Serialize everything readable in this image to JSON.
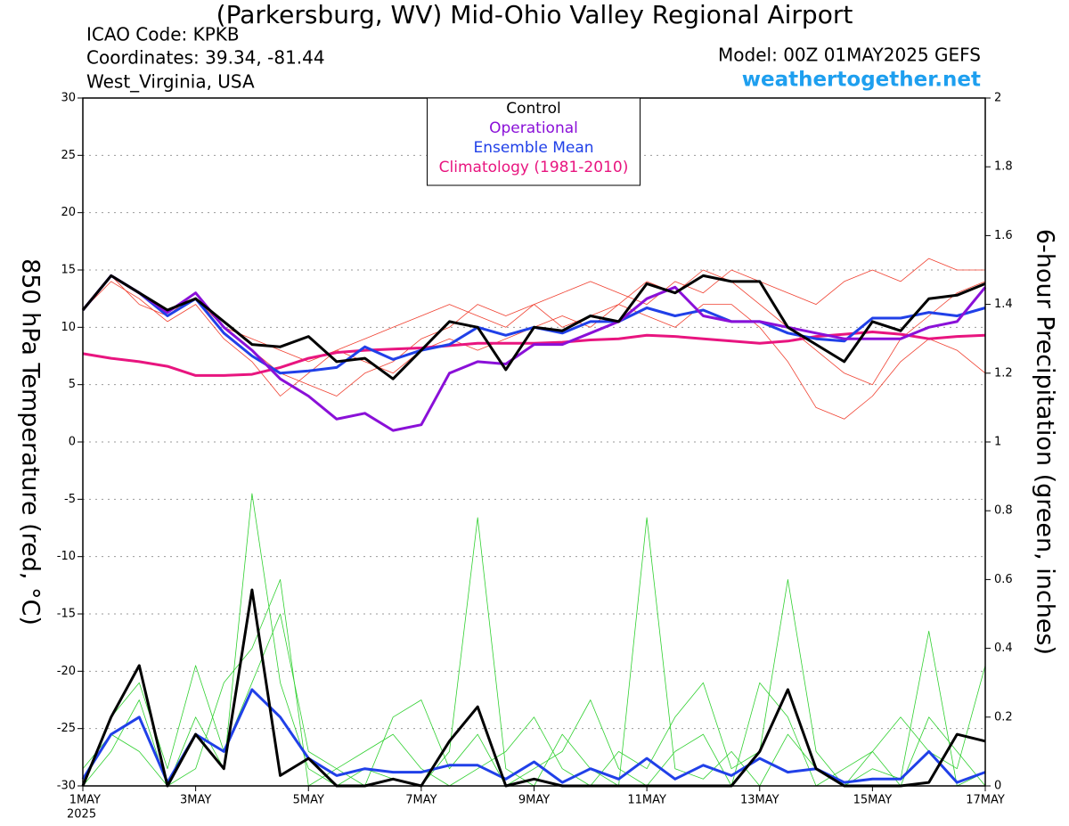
{
  "chart_data": {
    "type": "line",
    "title": "(Parkersburg, WV) Mid-Ohio Valley Regional Airport",
    "station_lines": [
      "ICAO Code: KPKB",
      "Coordinates: 39.34, -81.44",
      "West_Virginia, USA"
    ],
    "model": "Model: 00Z 01MAY2025 GEFS",
    "site": "weathertogether.net",
    "ylabel": "850 hPa Temperature (red, °C)",
    "y2label": "6-hour Precipitation (green, inches)",
    "year_label": "2025",
    "x": [
      1,
      1.5,
      2,
      2.5,
      3,
      3.5,
      4,
      4.5,
      5,
      5.5,
      6,
      6.5,
      7,
      7.5,
      8,
      8.5,
      9,
      9.5,
      10,
      10.5,
      11,
      11.5,
      12,
      12.5,
      13,
      13.5,
      14,
      14.5,
      15,
      15.5,
      16,
      16.5,
      17
    ],
    "xlim": [
      1,
      17
    ],
    "xticks": [
      {
        "value": 1,
        "label": "1MAY"
      },
      {
        "value": 3,
        "label": "3MAY"
      },
      {
        "value": 5,
        "label": "5MAY"
      },
      {
        "value": 7,
        "label": "7MAY"
      },
      {
        "value": 9,
        "label": "9MAY"
      },
      {
        "value": 11,
        "label": "11MAY"
      },
      {
        "value": 13,
        "label": "13MAY"
      },
      {
        "value": 15,
        "label": "15MAY"
      },
      {
        "value": 17,
        "label": "17MAY"
      }
    ],
    "ylim": [
      -30,
      30
    ],
    "yticks": [
      30,
      25,
      20,
      15,
      10,
      5,
      0,
      -5,
      -10,
      -15,
      -20,
      -25,
      -30
    ],
    "y2lim": [
      0,
      2
    ],
    "y2ticks": [
      2,
      1.8,
      1.6,
      1.4,
      1.2,
      1,
      0.8,
      0.6,
      0.4,
      0.2,
      0
    ],
    "grid": true,
    "legend": "top",
    "series": [
      {
        "name": "Control",
        "color": "#000000",
        "values": [
          11.5,
          14.5,
          13,
          11.5,
          12.5,
          10.5,
          8.5,
          8.3,
          9.2,
          7,
          7.3,
          5.5,
          8,
          10.5,
          10,
          6.3,
          10,
          9.7,
          11,
          10.5,
          13.8,
          13,
          14.5,
          14,
          14,
          10,
          8.5,
          7,
          10.5,
          9.7,
          12.5,
          12.8,
          13.8
        ]
      },
      {
        "name": "Operational",
        "color": "#8a10d8",
        "values": [
          11.5,
          14.5,
          13,
          11.3,
          13,
          10,
          8,
          5.5,
          4,
          2,
          2.5,
          1,
          1.5,
          6,
          7,
          6.8,
          8.5,
          8.5,
          9.5,
          10.5,
          12.5,
          13.5,
          11,
          10.5,
          10.5,
          10,
          9.5,
          9,
          9,
          9,
          10,
          10.5,
          13.5
        ]
      },
      {
        "name": "Ensemble Mean",
        "color": "#2040e8",
        "values": [
          11.5,
          14.5,
          13,
          11,
          12.5,
          9.5,
          7.5,
          6,
          6.2,
          6.5,
          8.3,
          7.2,
          8,
          8.5,
          10,
          9.3,
          10,
          9.5,
          10.5,
          10.5,
          11.7,
          11,
          11.5,
          10.5,
          10.5,
          9.5,
          9,
          8.8,
          10.8,
          10.8,
          11.3,
          11,
          11.7
        ]
      },
      {
        "name": "Climatology (1981-2010)",
        "color": "#e8157f",
        "values": [
          7.7,
          7.3,
          7,
          6.6,
          5.8,
          5.8,
          5.9,
          6.5,
          7.3,
          7.8,
          8,
          8.1,
          8.2,
          8.4,
          8.6,
          8.6,
          8.6,
          8.7,
          8.9,
          9,
          9.3,
          9.2,
          9,
          8.8,
          8.6,
          8.8,
          9.2,
          9.4,
          9.6,
          9.4,
          9,
          9.2,
          9.3
        ]
      }
    ],
    "temperature_members": [
      {
        "color": "#f04030",
        "values": [
          11.5,
          14.5,
          13,
          11.5,
          12.5,
          10,
          8,
          6,
          5,
          4,
          6,
          7,
          9,
          10,
          12,
          11,
          12,
          10,
          11,
          12,
          14,
          13,
          15,
          14,
          12,
          10,
          8,
          6,
          5,
          9,
          11,
          13,
          14
        ]
      },
      {
        "color": "#f04030",
        "values": [
          11.5,
          14,
          12.5,
          10.5,
          12,
          9,
          7,
          4,
          6,
          8,
          7,
          6,
          8,
          9,
          8,
          9,
          10,
          11,
          10,
          12,
          11,
          10,
          12,
          12,
          10,
          7,
          3,
          2,
          4,
          7,
          9,
          8,
          6
        ]
      },
      {
        "color": "#f04030",
        "values": [
          11.5,
          14.5,
          12,
          11,
          13,
          10,
          9,
          8,
          7,
          8,
          9,
          10,
          11,
          12,
          11,
          10,
          12,
          13,
          14,
          13,
          12,
          14,
          13,
          15,
          14,
          13,
          12,
          14,
          15,
          14,
          16,
          15,
          15
        ]
      }
    ],
    "precip_series": [
      {
        "color": "#2040e8",
        "axis": "y2",
        "values": [
          0.02,
          0.15,
          0.2,
          0.01,
          0.15,
          0.1,
          0.28,
          0.2,
          0.08,
          0.03,
          0.05,
          0.04,
          0.04,
          0.06,
          0.06,
          0.02,
          0.07,
          0.01,
          0.05,
          0.02,
          0.08,
          0.02,
          0.06,
          0.03,
          0.08,
          0.04,
          0.05,
          0.01,
          0.02,
          0.02,
          0.1,
          0.01,
          0.04
        ]
      },
      {
        "color": "#000000",
        "axis": "y2",
        "values": [
          0,
          0.2,
          0.35,
          0,
          0.15,
          0.05,
          0.57,
          0.03,
          0.08,
          0,
          0,
          0.02,
          0,
          0.13,
          0.23,
          0,
          0.02,
          0,
          0,
          0,
          0,
          0,
          0,
          0,
          0.1,
          0.28,
          0.05,
          0,
          0,
          0,
          0.01,
          0.15,
          0.13
        ]
      }
    ],
    "precip_members": [
      {
        "color": "#30d030",
        "axis": "y2",
        "values": [
          0,
          0.1,
          0.25,
          0,
          0.2,
          0.05,
          0.85,
          0.3,
          0.05,
          0,
          0.05,
          0.02,
          0,
          0.1,
          0.78,
          0.05,
          0,
          0.15,
          0.05,
          0,
          0.78,
          0.05,
          0.02,
          0.1,
          0,
          0.15,
          0.05,
          0,
          0.05,
          0.02,
          0.45,
          0,
          0.04
        ]
      },
      {
        "color": "#30d030",
        "axis": "y2",
        "values": [
          0,
          0.2,
          0.3,
          0.05,
          0.35,
          0.1,
          0.3,
          0.5,
          0.1,
          0.05,
          0.1,
          0.15,
          0.05,
          0,
          0.05,
          0.1,
          0.2,
          0.05,
          0,
          0.1,
          0.05,
          0.2,
          0.3,
          0.05,
          0.1,
          0.6,
          0.1,
          0,
          0.1,
          0.2,
          0.1,
          0.05,
          0.35
        ]
      },
      {
        "color": "#30d030",
        "axis": "y2",
        "values": [
          0.05,
          0.15,
          0.1,
          0,
          0.05,
          0.3,
          0.4,
          0.6,
          0,
          0.05,
          0,
          0.2,
          0.25,
          0.05,
          0.15,
          0,
          0.05,
          0.1,
          0.25,
          0.05,
          0,
          0.1,
          0.15,
          0,
          0.3,
          0.2,
          0,
          0.05,
          0.1,
          0,
          0.2,
          0.1,
          0
        ]
      }
    ]
  }
}
